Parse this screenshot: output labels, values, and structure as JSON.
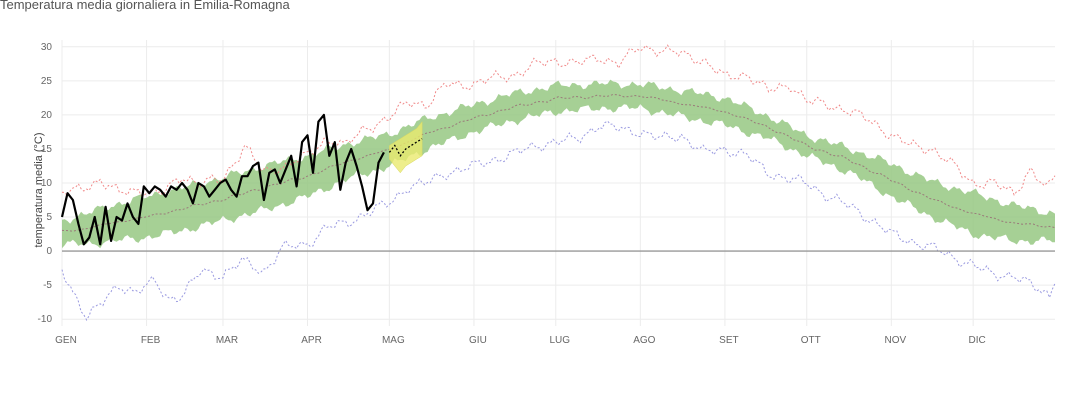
{
  "page": {
    "title": "Temperatura media giornaliera in Emilia-Romagna"
  },
  "chart_data": {
    "type": "area",
    "title": "Temperatura media giornaliera in Emilia-Romagna",
    "xlabel": "",
    "ylabel": "temperatura media (°C)",
    "xlim": [
      1,
      365
    ],
    "ylim": [
      -11,
      31
    ],
    "grid": true,
    "legend": "none",
    "x_ticks": [
      {
        "label": "GEN",
        "day": 1
      },
      {
        "label": "FEB",
        "day": 32
      },
      {
        "label": "MAR",
        "day": 60
      },
      {
        "label": "APR",
        "day": 91
      },
      {
        "label": "MAG",
        "day": 121
      },
      {
        "label": "GIU",
        "day": 152
      },
      {
        "label": "LUG",
        "day": 182
      },
      {
        "label": "AGO",
        "day": 213
      },
      {
        "label": "SET",
        "day": 244
      },
      {
        "label": "OTT",
        "day": 274
      },
      {
        "label": "NOV",
        "day": 305
      },
      {
        "label": "DIC",
        "day": 335
      }
    ],
    "y_ticks": [
      -10,
      -5,
      0,
      5,
      10,
      15,
      20,
      25,
      30
    ],
    "colors": {
      "band": "#96c882",
      "mean": "#9a7a7a",
      "record_max": "#f08a8a",
      "record_min": "#9a9ae0",
      "current": "#000000",
      "forecast_band": "#eaea6e",
      "forecast_line": "#000000",
      "zero_line": "#999999",
      "grid": "#ececec"
    },
    "series": [
      {
        "role": "band_upper",
        "x": [
          1,
          10,
          20,
          32,
          45,
          60,
          75,
          91,
          105,
          121,
          135,
          152,
          165,
          182,
          200,
          213,
          225,
          244,
          260,
          274,
          290,
          305,
          320,
          335,
          350,
          365
        ],
        "values": [
          4.5,
          5.5,
          6.8,
          8.0,
          9.3,
          10.8,
          12.5,
          14.0,
          15.7,
          17.2,
          19.5,
          21.5,
          23.0,
          24.3,
          24.6,
          24.5,
          23.8,
          22.5,
          19.8,
          17.0,
          15.0,
          12.8,
          10.2,
          8.5,
          6.7,
          5.5
        ]
      },
      {
        "role": "band_lower",
        "x": [
          1,
          10,
          20,
          32,
          45,
          60,
          75,
          91,
          105,
          121,
          135,
          152,
          165,
          182,
          200,
          213,
          225,
          244,
          260,
          274,
          290,
          305,
          320,
          335,
          350,
          365
        ],
        "values": [
          1.0,
          1.0,
          1.5,
          2.0,
          3.0,
          4.5,
          6.0,
          8.0,
          10.5,
          12.5,
          15.0,
          17.5,
          19.0,
          20.5,
          21.0,
          21.0,
          20.0,
          18.5,
          16.5,
          14.0,
          11.5,
          8.0,
          5.0,
          2.5,
          1.5,
          1.5
        ]
      },
      {
        "role": "mean",
        "x": [
          1,
          10,
          20,
          32,
          45,
          60,
          75,
          91,
          105,
          121,
          135,
          152,
          165,
          182,
          200,
          213,
          225,
          244,
          260,
          274,
          290,
          305,
          320,
          335,
          350,
          365
        ],
        "values": [
          2.9,
          3.3,
          4.2,
          5.0,
          6.2,
          7.6,
          9.3,
          11.0,
          13.1,
          14.9,
          17.3,
          19.5,
          21.0,
          22.4,
          22.8,
          22.8,
          21.9,
          20.5,
          18.2,
          15.5,
          13.3,
          10.4,
          7.6,
          5.5,
          4.1,
          3.5
        ]
      },
      {
        "role": "record_max",
        "x": [
          1,
          8,
          15,
          22,
          30,
          38,
          45,
          52,
          60,
          68,
          75,
          82,
          91,
          98,
          105,
          112,
          121,
          128,
          135,
          142,
          152,
          160,
          168,
          175,
          182,
          190,
          198,
          205,
          213,
          220,
          228,
          236,
          244,
          252,
          260,
          268,
          274,
          282,
          290,
          298,
          305,
          312,
          320,
          328,
          335,
          342,
          350,
          356,
          362,
          365
        ],
        "values": [
          8.5,
          9.0,
          10.5,
          8.5,
          9.0,
          8.5,
          11.0,
          10.0,
          10.5,
          15.5,
          11.5,
          12.5,
          14.0,
          16.5,
          15.5,
          18.0,
          19.5,
          22.0,
          21.5,
          24.5,
          24.5,
          25.5,
          26.0,
          27.5,
          28.0,
          27.5,
          28.5,
          27.5,
          30.0,
          29.5,
          29.0,
          28.0,
          25.5,
          26.0,
          23.5,
          24.5,
          22.0,
          21.5,
          20.5,
          19.0,
          17.0,
          15.5,
          15.0,
          12.5,
          10.0,
          10.0,
          8.5,
          12.0,
          9.0,
          11.0
        ]
      },
      {
        "role": "record_min",
        "x": [
          1,
          5,
          10,
          15,
          22,
          28,
          35,
          40,
          45,
          52,
          60,
          67,
          75,
          82,
          91,
          98,
          105,
          112,
          121,
          128,
          135,
          142,
          152,
          160,
          168,
          175,
          182,
          190,
          198,
          205,
          213,
          220,
          228,
          236,
          244,
          252,
          260,
          268,
          274,
          282,
          290,
          298,
          305,
          312,
          320,
          328,
          335,
          342,
          350,
          358,
          363,
          365
        ],
        "values": [
          -3.0,
          -6.0,
          -9.5,
          -8.0,
          -5.0,
          -6.0,
          -4.5,
          -7.0,
          -6.5,
          -3.0,
          -3.5,
          -1.5,
          -3.0,
          0.5,
          1.0,
          3.5,
          4.0,
          5.5,
          7.0,
          9.5,
          10.0,
          11.5,
          12.5,
          13.5,
          14.5,
          15.5,
          16.0,
          16.5,
          18.5,
          18.0,
          17.5,
          16.5,
          17.0,
          14.5,
          15.0,
          14.0,
          11.5,
          10.5,
          10.0,
          8.0,
          6.5,
          4.5,
          2.5,
          1.5,
          0.5,
          -1.0,
          -2.0,
          -3.5,
          -3.5,
          -5.5,
          -6.5,
          -4.0
        ]
      },
      {
        "role": "current",
        "x": [
          1,
          3,
          5,
          7,
          9,
          11,
          13,
          15,
          17,
          19,
          21,
          23,
          25,
          27,
          29,
          31,
          33,
          35,
          37,
          39,
          41,
          43,
          45,
          47,
          49,
          51,
          53,
          55,
          57,
          59,
          61,
          63,
          65,
          67,
          69,
          71,
          73,
          75,
          77,
          79,
          81,
          83,
          85,
          87,
          89,
          91,
          93,
          95,
          97,
          99,
          101,
          103,
          105,
          107,
          109,
          111,
          113,
          115,
          117,
          119
        ],
        "values": [
          5.0,
          8.5,
          7.5,
          4.0,
          1.0,
          2.0,
          5.0,
          1.0,
          6.5,
          1.5,
          5.0,
          4.5,
          7.0,
          5.0,
          4.0,
          9.5,
          8.5,
          9.5,
          9.0,
          8.0,
          9.5,
          9.0,
          10.0,
          9.0,
          7.0,
          10.0,
          9.5,
          8.0,
          9.0,
          10.0,
          10.5,
          9.0,
          8.0,
          11.0,
          11.0,
          12.5,
          13.0,
          7.5,
          11.5,
          12.0,
          10.0,
          12.0,
          14.0,
          9.5,
          16.0,
          17.0,
          11.5,
          19.0,
          20.0,
          14.0,
          16.0,
          9.0,
          13.0,
          15.0,
          12.5,
          9.5,
          6.0,
          7.0,
          13.0,
          14.5
        ]
      },
      {
        "role": "forecast_band_upper",
        "x": [
          121,
          123,
          125,
          127,
          129,
          131,
          133
        ],
        "values": [
          15.5,
          16.0,
          16.5,
          17.0,
          17.5,
          18.0,
          19.0
        ]
      },
      {
        "role": "forecast_band_lower",
        "x": [
          121,
          123,
          125,
          127,
          129,
          131,
          133
        ],
        "values": [
          13.5,
          12.5,
          11.5,
          12.5,
          13.0,
          13.5,
          14.0
        ]
      },
      {
        "role": "forecast",
        "x": [
          121,
          123,
          125,
          127,
          129,
          131,
          133
        ],
        "values": [
          14.5,
          15.5,
          14.0,
          15.0,
          15.5,
          16.0,
          16.5
        ]
      }
    ]
  }
}
